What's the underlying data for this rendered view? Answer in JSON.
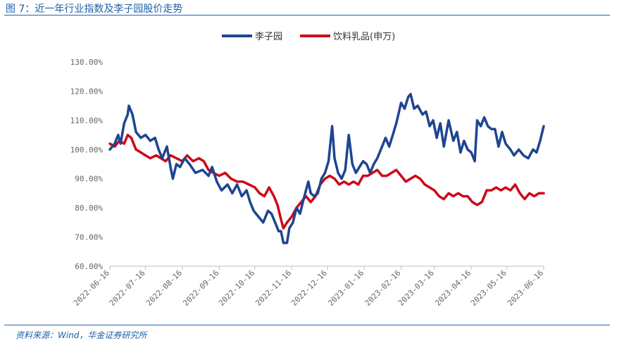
{
  "header": {
    "title": "图 7：近一年行业指数及李子园股价走势"
  },
  "footer": {
    "source": "资料来源：Wind，华金证券研究所"
  },
  "chart_data": {
    "type": "line",
    "title": "",
    "xlabel": "",
    "ylabel": "",
    "ylim": [
      0.6,
      1.3
    ],
    "y_ticks": [
      "130.00%",
      "120.00%",
      "110.00%",
      "100.00%",
      "90.00%",
      "80.00%",
      "70.00%",
      "60.00%"
    ],
    "y_tick_values": [
      1.3,
      1.2,
      1.1,
      1.0,
      0.9,
      0.8,
      0.7,
      0.6
    ],
    "x_ticks": [
      "2022-06-16",
      "2022-07-16",
      "2022-08-16",
      "2022-09-16",
      "2022-10-16",
      "2022-11-16",
      "2022-12-16",
      "2023-01-16",
      "2023-02-16",
      "2023-03-16",
      "2023-04-16",
      "2023-05-16",
      "2023-06-16"
    ],
    "xlim": [
      "2022-06-16",
      "2023-06-16"
    ],
    "legend_position": "top-center",
    "grid": false,
    "series": [
      {
        "name": "李子园",
        "color": "#1d4591",
        "points": [
          [
            "2022-06-16",
            1.0
          ],
          [
            "2022-06-20",
            1.02
          ],
          [
            "2022-06-23",
            1.05
          ],
          [
            "2022-06-25",
            1.02
          ],
          [
            "2022-06-28",
            1.09
          ],
          [
            "2022-07-01",
            1.12
          ],
          [
            "2022-07-02",
            1.15
          ],
          [
            "2022-07-05",
            1.12
          ],
          [
            "2022-07-08",
            1.06
          ],
          [
            "2022-07-12",
            1.04
          ],
          [
            "2022-07-16",
            1.05
          ],
          [
            "2022-07-20",
            1.03
          ],
          [
            "2022-07-24",
            1.04
          ],
          [
            "2022-07-27",
            1.0
          ],
          [
            "2022-07-30",
            0.97
          ],
          [
            "2022-08-03",
            1.01
          ],
          [
            "2022-08-06",
            0.94
          ],
          [
            "2022-08-08",
            0.9
          ],
          [
            "2022-08-11",
            0.95
          ],
          [
            "2022-08-14",
            0.94
          ],
          [
            "2022-08-18",
            0.97
          ],
          [
            "2022-08-22",
            0.95
          ],
          [
            "2022-08-27",
            0.92
          ],
          [
            "2022-09-02",
            0.93
          ],
          [
            "2022-09-07",
            0.91
          ],
          [
            "2022-09-10",
            0.94
          ],
          [
            "2022-09-14",
            0.89
          ],
          [
            "2022-09-18",
            0.86
          ],
          [
            "2022-09-23",
            0.88
          ],
          [
            "2022-09-27",
            0.85
          ],
          [
            "2022-10-01",
            0.88
          ],
          [
            "2022-10-05",
            0.84
          ],
          [
            "2022-10-09",
            0.86
          ],
          [
            "2022-10-12",
            0.82
          ],
          [
            "2022-10-15",
            0.79
          ],
          [
            "2022-10-19",
            0.77
          ],
          [
            "2022-10-23",
            0.75
          ],
          [
            "2022-10-27",
            0.79
          ],
          [
            "2022-10-30",
            0.78
          ],
          [
            "2022-11-03",
            0.74
          ],
          [
            "2022-11-05",
            0.72
          ],
          [
            "2022-11-07",
            0.72
          ],
          [
            "2022-11-09",
            0.68
          ],
          [
            "2022-11-12",
            0.68
          ],
          [
            "2022-11-14",
            0.73
          ],
          [
            "2022-11-17",
            0.75
          ],
          [
            "2022-11-20",
            0.8
          ],
          [
            "2022-11-23",
            0.78
          ],
          [
            "2022-11-26",
            0.83
          ],
          [
            "2022-11-30",
            0.89
          ],
          [
            "2022-12-02",
            0.85
          ],
          [
            "2022-12-05",
            0.84
          ],
          [
            "2022-12-08",
            0.85
          ],
          [
            "2022-12-11",
            0.9
          ],
          [
            "2022-12-14",
            0.92
          ],
          [
            "2022-12-17",
            0.96
          ],
          [
            "2022-12-20",
            1.08
          ],
          [
            "2022-12-22",
            0.97
          ],
          [
            "2022-12-25",
            0.92
          ],
          [
            "2022-12-28",
            0.9
          ],
          [
            "2022-12-31",
            0.93
          ],
          [
            "2023-01-03",
            1.05
          ],
          [
            "2023-01-06",
            0.95
          ],
          [
            "2023-01-09",
            0.92
          ],
          [
            "2023-01-12",
            0.94
          ],
          [
            "2023-01-15",
            0.96
          ],
          [
            "2023-01-18",
            0.95
          ],
          [
            "2023-01-21",
            0.92
          ],
          [
            "2023-01-24",
            0.95
          ],
          [
            "2023-01-27",
            0.97
          ],
          [
            "2023-01-31",
            1.01
          ],
          [
            "2023-02-03",
            1.04
          ],
          [
            "2023-02-06",
            1.01
          ],
          [
            "2023-02-09",
            1.05
          ],
          [
            "2023-02-12",
            1.09
          ],
          [
            "2023-02-16",
            1.16
          ],
          [
            "2023-02-19",
            1.14
          ],
          [
            "2023-02-22",
            1.18
          ],
          [
            "2023-02-24",
            1.19
          ],
          [
            "2023-02-27",
            1.14
          ],
          [
            "2023-03-02",
            1.15
          ],
          [
            "2023-03-06",
            1.12
          ],
          [
            "2023-03-09",
            1.13
          ],
          [
            "2023-03-12",
            1.08
          ],
          [
            "2023-03-15",
            1.1
          ],
          [
            "2023-03-18",
            1.04
          ],
          [
            "2023-03-21",
            1.09
          ],
          [
            "2023-03-24",
            1.01
          ],
          [
            "2023-03-28",
            1.1
          ],
          [
            "2023-04-01",
            1.03
          ],
          [
            "2023-04-04",
            1.06
          ],
          [
            "2023-04-07",
            0.99
          ],
          [
            "2023-04-10",
            1.03
          ],
          [
            "2023-04-13",
            1.0
          ],
          [
            "2023-04-16",
            0.99
          ],
          [
            "2023-04-19",
            0.96
          ],
          [
            "2023-04-21",
            1.1
          ],
          [
            "2023-04-24",
            1.08
          ],
          [
            "2023-04-27",
            1.11
          ],
          [
            "2023-04-30",
            1.08
          ],
          [
            "2023-05-03",
            1.07
          ],
          [
            "2023-05-06",
            1.07
          ],
          [
            "2023-05-09",
            1.01
          ],
          [
            "2023-05-12",
            1.06
          ],
          [
            "2023-05-15",
            1.02
          ],
          [
            "2023-05-19",
            1.0
          ],
          [
            "2023-05-22",
            0.98
          ],
          [
            "2023-05-26",
            1.0
          ],
          [
            "2023-05-30",
            0.98
          ],
          [
            "2023-06-03",
            0.97
          ],
          [
            "2023-06-07",
            1.0
          ],
          [
            "2023-06-10",
            0.99
          ],
          [
            "2023-06-13",
            1.03
          ],
          [
            "2023-06-16",
            1.08
          ]
        ]
      },
      {
        "name": "饮料乳品(申万)",
        "color": "#cc0a1a",
        "points": [
          [
            "2022-06-16",
            1.02
          ],
          [
            "2022-06-20",
            1.01
          ],
          [
            "2022-06-24",
            1.03
          ],
          [
            "2022-06-28",
            1.02
          ],
          [
            "2022-07-01",
            1.05
          ],
          [
            "2022-07-04",
            1.04
          ],
          [
            "2022-07-08",
            1.0
          ],
          [
            "2022-07-12",
            0.99
          ],
          [
            "2022-07-16",
            0.98
          ],
          [
            "2022-07-20",
            0.97
          ],
          [
            "2022-07-25",
            0.98
          ],
          [
            "2022-07-29",
            0.97
          ],
          [
            "2022-08-02",
            0.96
          ],
          [
            "2022-08-06",
            0.98
          ],
          [
            "2022-08-11",
            0.97
          ],
          [
            "2022-08-16",
            0.96
          ],
          [
            "2022-08-20",
            0.98
          ],
          [
            "2022-08-25",
            0.96
          ],
          [
            "2022-08-30",
            0.97
          ],
          [
            "2022-09-03",
            0.96
          ],
          [
            "2022-09-07",
            0.93
          ],
          [
            "2022-09-11",
            0.92
          ],
          [
            "2022-09-16",
            0.91
          ],
          [
            "2022-09-21",
            0.92
          ],
          [
            "2022-09-26",
            0.9
          ],
          [
            "2022-10-01",
            0.89
          ],
          [
            "2022-10-06",
            0.89
          ],
          [
            "2022-10-11",
            0.88
          ],
          [
            "2022-10-16",
            0.87
          ],
          [
            "2022-10-20",
            0.85
          ],
          [
            "2022-10-24",
            0.84
          ],
          [
            "2022-10-28",
            0.87
          ],
          [
            "2022-11-01",
            0.84
          ],
          [
            "2022-11-04",
            0.81
          ],
          [
            "2022-11-07",
            0.76
          ],
          [
            "2022-11-09",
            0.73
          ],
          [
            "2022-11-12",
            0.75
          ],
          [
            "2022-11-16",
            0.77
          ],
          [
            "2022-11-20",
            0.8
          ],
          [
            "2022-11-24",
            0.82
          ],
          [
            "2022-11-28",
            0.84
          ],
          [
            "2022-12-02",
            0.82
          ],
          [
            "2022-12-06",
            0.84
          ],
          [
            "2022-12-10",
            0.88
          ],
          [
            "2022-12-14",
            0.9
          ],
          [
            "2022-12-18",
            0.91
          ],
          [
            "2022-12-22",
            0.9
          ],
          [
            "2022-12-26",
            0.88
          ],
          [
            "2022-12-30",
            0.89
          ],
          [
            "2023-01-03",
            0.88
          ],
          [
            "2023-01-07",
            0.89
          ],
          [
            "2023-01-11",
            0.88
          ],
          [
            "2023-01-15",
            0.91
          ],
          [
            "2023-01-19",
            0.91
          ],
          [
            "2023-01-23",
            0.92
          ],
          [
            "2023-01-27",
            0.93
          ],
          [
            "2023-01-31",
            0.91
          ],
          [
            "2023-02-04",
            0.91
          ],
          [
            "2023-02-08",
            0.92
          ],
          [
            "2023-02-12",
            0.93
          ],
          [
            "2023-02-16",
            0.91
          ],
          [
            "2023-02-20",
            0.89
          ],
          [
            "2023-02-24",
            0.9
          ],
          [
            "2023-02-28",
            0.91
          ],
          [
            "2023-03-04",
            0.9
          ],
          [
            "2023-03-08",
            0.88
          ],
          [
            "2023-03-12",
            0.87
          ],
          [
            "2023-03-16",
            0.86
          ],
          [
            "2023-03-20",
            0.84
          ],
          [
            "2023-03-24",
            0.83
          ],
          [
            "2023-03-28",
            0.85
          ],
          [
            "2023-04-01",
            0.84
          ],
          [
            "2023-04-05",
            0.85
          ],
          [
            "2023-04-09",
            0.84
          ],
          [
            "2023-04-13",
            0.84
          ],
          [
            "2023-04-17",
            0.82
          ],
          [
            "2023-04-21",
            0.81
          ],
          [
            "2023-04-25",
            0.82
          ],
          [
            "2023-04-29",
            0.86
          ],
          [
            "2023-05-03",
            0.86
          ],
          [
            "2023-05-07",
            0.87
          ],
          [
            "2023-05-11",
            0.86
          ],
          [
            "2023-05-15",
            0.87
          ],
          [
            "2023-05-19",
            0.86
          ],
          [
            "2023-05-23",
            0.88
          ],
          [
            "2023-05-27",
            0.85
          ],
          [
            "2023-05-31",
            0.83
          ],
          [
            "2023-06-04",
            0.85
          ],
          [
            "2023-06-08",
            0.84
          ],
          [
            "2023-06-12",
            0.85
          ],
          [
            "2023-06-16",
            0.85
          ]
        ]
      }
    ]
  }
}
